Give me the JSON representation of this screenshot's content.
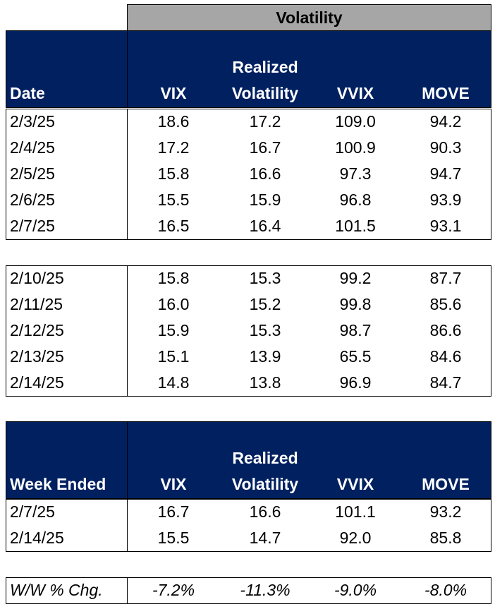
{
  "header": {
    "title": "Volatility"
  },
  "daily": {
    "columns": [
      "Date",
      "VIX",
      "Realized Volatility",
      "VVIX",
      "MOVE"
    ],
    "weeks": [
      [
        [
          "2/3/25",
          "18.6",
          "17.2",
          "109.0",
          "94.2"
        ],
        [
          "2/4/25",
          "17.2",
          "16.7",
          "100.9",
          "90.3"
        ],
        [
          "2/5/25",
          "15.8",
          "16.6",
          "97.3",
          "94.7"
        ],
        [
          "2/6/25",
          "15.5",
          "15.9",
          "96.8",
          "93.9"
        ],
        [
          "2/7/25",
          "16.5",
          "16.4",
          "101.5",
          "93.1"
        ]
      ],
      [
        [
          "2/10/25",
          "15.8",
          "15.3",
          "99.2",
          "87.7"
        ],
        [
          "2/11/25",
          "16.0",
          "15.2",
          "99.8",
          "85.6"
        ],
        [
          "2/12/25",
          "15.9",
          "15.3",
          "98.7",
          "86.6"
        ],
        [
          "2/13/25",
          "15.1",
          "13.9",
          "65.5",
          "84.6"
        ],
        [
          "2/14/25",
          "14.8",
          "13.8",
          "96.9",
          "84.7"
        ]
      ]
    ]
  },
  "weekly": {
    "columns": [
      "Week Ended",
      "VIX",
      "Realized Volatility",
      "VVIX",
      "MOVE"
    ],
    "rows": [
      [
        "2/7/25",
        "16.7",
        "16.6",
        "101.1",
        "93.2"
      ],
      [
        "2/14/25",
        "15.5",
        "14.7",
        "92.0",
        "85.8"
      ]
    ]
  },
  "change": {
    "label": "W/W % Chg.",
    "values": [
      "-7.2%",
      "-11.3%",
      "-9.0%",
      "-8.0%"
    ]
  }
}
